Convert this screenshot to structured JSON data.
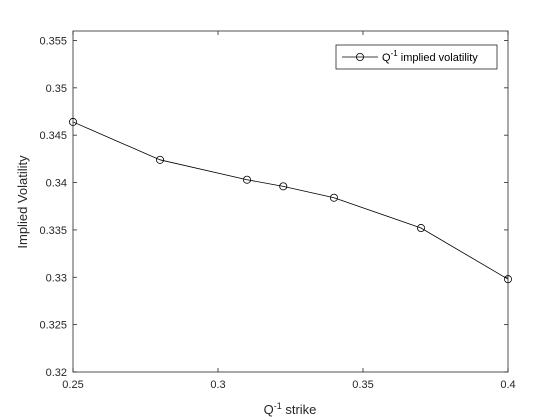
{
  "chart_data": {
    "type": "line",
    "title": "",
    "xlabel": "Q",
    "xlabel_sup": "-1",
    "xlabel_rest": " strike",
    "ylabel": "Implied Volatility",
    "xlim": [
      0.25,
      0.4
    ],
    "ylim": [
      0.32,
      0.356
    ],
    "xticks": [
      "0.25",
      "0.3",
      "0.35",
      "0.4"
    ],
    "xtick_values": [
      0.25,
      0.3,
      0.35,
      0.4
    ],
    "yticks": [
      "0.32",
      "0.325",
      "0.33",
      "0.335",
      "0.34",
      "0.345",
      "0.35",
      "0.355"
    ],
    "ytick_values": [
      0.32,
      0.325,
      0.33,
      0.335,
      0.34,
      0.345,
      0.35,
      0.355
    ],
    "grid": false,
    "legend_position": "top-right",
    "series": [
      {
        "name": "Q",
        "name_sup": "-1",
        "name_rest": " implied volatility",
        "color": "#000000",
        "marker": "circle",
        "x": [
          0.25,
          0.28,
          0.31,
          0.3225,
          0.34,
          0.37,
          0.4
        ],
        "y": [
          0.3464,
          0.3424,
          0.3403,
          0.3396,
          0.3384,
          0.3352,
          0.3298
        ]
      }
    ]
  }
}
